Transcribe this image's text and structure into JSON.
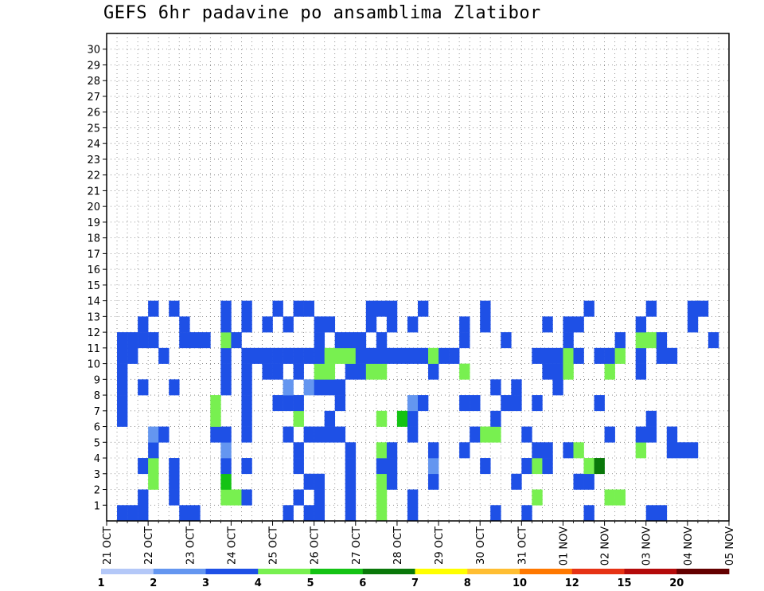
{
  "chart_data": {
    "type": "heatmap",
    "title": "GEFS 6hr padavine po ansamblima Zlatibor",
    "y_ticks": [
      "1",
      "2",
      "3",
      "4",
      "5",
      "6",
      "7",
      "8",
      "9",
      "10",
      "11",
      "12",
      "13",
      "14",
      "15",
      "16",
      "17",
      "18",
      "19",
      "20",
      "21",
      "22",
      "23",
      "24",
      "25",
      "26",
      "27",
      "28",
      "29",
      "30"
    ],
    "x_ticks": [
      "21 OCT",
      "22 OCT",
      "23 OCT",
      "24 OCT",
      "25 OCT",
      "26 OCT",
      "27 OCT",
      "28 OCT",
      "29 OCT",
      "30 OCT",
      "31 OCT",
      "01 NOV",
      "02 NOV",
      "03 NOV",
      "04 NOV",
      "05 NOV"
    ],
    "x_steps_total": 60,
    "y_members": 31,
    "legend_labels": [
      "1",
      "2",
      "3",
      "4",
      "5",
      "6",
      "7",
      "8",
      "10",
      "12",
      "15",
      "20"
    ],
    "legend_colors": [
      "#b4c8f8",
      "#6496f0",
      "#1e50e6",
      "#78f050",
      "#14c314",
      "#0a780a",
      "#ffff00",
      "#ffbe32",
      "#ff7800",
      "#e63214",
      "#b40a0a",
      "#640000"
    ],
    "cells": [
      [
        0,
        1,
        2
      ],
      [
        0,
        2,
        2
      ],
      [
        0,
        3,
        2
      ],
      [
        0,
        7,
        2
      ],
      [
        0,
        8,
        2
      ],
      [
        0,
        17,
        2
      ],
      [
        0,
        19,
        2
      ],
      [
        0,
        20,
        2
      ],
      [
        0,
        23,
        2
      ],
      [
        0,
        26,
        3
      ],
      [
        0,
        29,
        2
      ],
      [
        0,
        37,
        2
      ],
      [
        0,
        40,
        2
      ],
      [
        0,
        46,
        2
      ],
      [
        0,
        52,
        2
      ],
      [
        0,
        53,
        2
      ],
      [
        1,
        3,
        2
      ],
      [
        1,
        6,
        2
      ],
      [
        1,
        11,
        3
      ],
      [
        1,
        12,
        3
      ],
      [
        1,
        13,
        2
      ],
      [
        1,
        18,
        2
      ],
      [
        1,
        20,
        2
      ],
      [
        1,
        23,
        2
      ],
      [
        1,
        26,
        3
      ],
      [
        1,
        29,
        2
      ],
      [
        1,
        41,
        3
      ],
      [
        1,
        48,
        3
      ],
      [
        1,
        49,
        3
      ],
      [
        2,
        4,
        3
      ],
      [
        2,
        6,
        2
      ],
      [
        2,
        11,
        4
      ],
      [
        2,
        19,
        2
      ],
      [
        2,
        20,
        2
      ],
      [
        2,
        23,
        2
      ],
      [
        2,
        26,
        3
      ],
      [
        2,
        27,
        2
      ],
      [
        2,
        31,
        2
      ],
      [
        2,
        39,
        2
      ],
      [
        2,
        45,
        2
      ],
      [
        2,
        46,
        2
      ],
      [
        3,
        3,
        2
      ],
      [
        3,
        4,
        3
      ],
      [
        3,
        6,
        2
      ],
      [
        3,
        11,
        2
      ],
      [
        3,
        13,
        2
      ],
      [
        3,
        18,
        2
      ],
      [
        3,
        23,
        2
      ],
      [
        3,
        26,
        2
      ],
      [
        3,
        27,
        2
      ],
      [
        3,
        31,
        1
      ],
      [
        3,
        36,
        2
      ],
      [
        3,
        40,
        2
      ],
      [
        3,
        41,
        3
      ],
      [
        3,
        42,
        2
      ],
      [
        3,
        46,
        3
      ],
      [
        3,
        47,
        5
      ],
      [
        4,
        4,
        2
      ],
      [
        4,
        11,
        1
      ],
      [
        4,
        18,
        2
      ],
      [
        4,
        23,
        2
      ],
      [
        4,
        26,
        3
      ],
      [
        4,
        27,
        2
      ],
      [
        4,
        31,
        2
      ],
      [
        4,
        34,
        2
      ],
      [
        4,
        41,
        2
      ],
      [
        4,
        42,
        2
      ],
      [
        4,
        44,
        2
      ],
      [
        4,
        45,
        3
      ],
      [
        4,
        51,
        3
      ],
      [
        4,
        54,
        2
      ],
      [
        4,
        55,
        2
      ],
      [
        4,
        56,
        2
      ],
      [
        5,
        4,
        1
      ],
      [
        5,
        5,
        2
      ],
      [
        5,
        10,
        2
      ],
      [
        5,
        11,
        2
      ],
      [
        5,
        13,
        2
      ],
      [
        5,
        17,
        2
      ],
      [
        5,
        19,
        2
      ],
      [
        5,
        20,
        2
      ],
      [
        5,
        21,
        2
      ],
      [
        5,
        22,
        2
      ],
      [
        5,
        29,
        2
      ],
      [
        5,
        35,
        2
      ],
      [
        5,
        36,
        3
      ],
      [
        5,
        37,
        3
      ],
      [
        5,
        40,
        2
      ],
      [
        5,
        48,
        2
      ],
      [
        5,
        51,
        2
      ],
      [
        5,
        52,
        2
      ],
      [
        5,
        54,
        2
      ],
      [
        6,
        1,
        2
      ],
      [
        6,
        10,
        3
      ],
      [
        6,
        13,
        2
      ],
      [
        6,
        18,
        3
      ],
      [
        6,
        21,
        2
      ],
      [
        6,
        26,
        3
      ],
      [
        6,
        28,
        4
      ],
      [
        6,
        29,
        2
      ],
      [
        6,
        37,
        2
      ],
      [
        6,
        52,
        2
      ],
      [
        7,
        1,
        2
      ],
      [
        7,
        10,
        3
      ],
      [
        7,
        13,
        2
      ],
      [
        7,
        16,
        2
      ],
      [
        7,
        17,
        2
      ],
      [
        7,
        18,
        2
      ],
      [
        7,
        22,
        2
      ],
      [
        7,
        29,
        1
      ],
      [
        7,
        30,
        2
      ],
      [
        7,
        34,
        2
      ],
      [
        7,
        35,
        2
      ],
      [
        7,
        38,
        2
      ],
      [
        7,
        39,
        2
      ],
      [
        7,
        41,
        2
      ],
      [
        7,
        47,
        2
      ],
      [
        8,
        1,
        2
      ],
      [
        8,
        3,
        2
      ],
      [
        8,
        6,
        2
      ],
      [
        8,
        11,
        2
      ],
      [
        8,
        13,
        2
      ],
      [
        8,
        17,
        1
      ],
      [
        8,
        19,
        1
      ],
      [
        8,
        20,
        2
      ],
      [
        8,
        21,
        2
      ],
      [
        8,
        22,
        2
      ],
      [
        8,
        37,
        2
      ],
      [
        8,
        39,
        2
      ],
      [
        8,
        43,
        2
      ],
      [
        9,
        1,
        2
      ],
      [
        9,
        11,
        2
      ],
      [
        9,
        13,
        2
      ],
      [
        9,
        15,
        2
      ],
      [
        9,
        16,
        2
      ],
      [
        9,
        18,
        2
      ],
      [
        9,
        20,
        3
      ],
      [
        9,
        21,
        3
      ],
      [
        9,
        23,
        2
      ],
      [
        9,
        24,
        2
      ],
      [
        9,
        25,
        3
      ],
      [
        9,
        26,
        3
      ],
      [
        9,
        31,
        2
      ],
      [
        9,
        34,
        3
      ],
      [
        9,
        42,
        2
      ],
      [
        9,
        43,
        2
      ],
      [
        9,
        44,
        3
      ],
      [
        9,
        48,
        3
      ],
      [
        9,
        51,
        2
      ],
      [
        10,
        1,
        2
      ],
      [
        10,
        2,
        2
      ],
      [
        10,
        5,
        2
      ],
      [
        10,
        11,
        2
      ],
      [
        10,
        13,
        2
      ],
      [
        10,
        14,
        2
      ],
      [
        10,
        15,
        2
      ],
      [
        10,
        16,
        2
      ],
      [
        10,
        17,
        2
      ],
      [
        10,
        18,
        2
      ],
      [
        10,
        19,
        2
      ],
      [
        10,
        20,
        2
      ],
      [
        10,
        21,
        3
      ],
      [
        10,
        22,
        3
      ],
      [
        10,
        23,
        3
      ],
      [
        10,
        24,
        2
      ],
      [
        10,
        25,
        2
      ],
      [
        10,
        26,
        2
      ],
      [
        10,
        27,
        2
      ],
      [
        10,
        28,
        2
      ],
      [
        10,
        29,
        2
      ],
      [
        10,
        30,
        2
      ],
      [
        10,
        31,
        3
      ],
      [
        10,
        32,
        2
      ],
      [
        10,
        33,
        2
      ],
      [
        10,
        41,
        2
      ],
      [
        10,
        42,
        2
      ],
      [
        10,
        43,
        2
      ],
      [
        10,
        44,
        3
      ],
      [
        10,
        45,
        2
      ],
      [
        10,
        47,
        2
      ],
      [
        10,
        48,
        2
      ],
      [
        10,
        49,
        3
      ],
      [
        10,
        51,
        2
      ],
      [
        10,
        53,
        2
      ],
      [
        10,
        54,
        2
      ],
      [
        11,
        1,
        2
      ],
      [
        11,
        2,
        2
      ],
      [
        11,
        3,
        2
      ],
      [
        11,
        4,
        2
      ],
      [
        11,
        7,
        2
      ],
      [
        11,
        8,
        2
      ],
      [
        11,
        9,
        2
      ],
      [
        11,
        11,
        3
      ],
      [
        11,
        12,
        2
      ],
      [
        11,
        20,
        2
      ],
      [
        11,
        22,
        2
      ],
      [
        11,
        23,
        2
      ],
      [
        11,
        24,
        2
      ],
      [
        11,
        26,
        2
      ],
      [
        11,
        34,
        2
      ],
      [
        11,
        38,
        2
      ],
      [
        11,
        44,
        2
      ],
      [
        11,
        49,
        2
      ],
      [
        11,
        51,
        3
      ],
      [
        11,
        52,
        3
      ],
      [
        11,
        53,
        2
      ],
      [
        11,
        58,
        2
      ],
      [
        12,
        3,
        2
      ],
      [
        12,
        7,
        2
      ],
      [
        12,
        11,
        2
      ],
      [
        12,
        13,
        2
      ],
      [
        12,
        15,
        2
      ],
      [
        12,
        17,
        2
      ],
      [
        12,
        20,
        2
      ],
      [
        12,
        21,
        2
      ],
      [
        12,
        25,
        2
      ],
      [
        12,
        27,
        2
      ],
      [
        12,
        29,
        2
      ],
      [
        12,
        34,
        2
      ],
      [
        12,
        36,
        2
      ],
      [
        12,
        42,
        2
      ],
      [
        12,
        44,
        2
      ],
      [
        12,
        45,
        2
      ],
      [
        12,
        51,
        2
      ],
      [
        12,
        56,
        2
      ],
      [
        13,
        4,
        2
      ],
      [
        13,
        6,
        2
      ],
      [
        13,
        11,
        2
      ],
      [
        13,
        13,
        2
      ],
      [
        13,
        16,
        2
      ],
      [
        13,
        18,
        2
      ],
      [
        13,
        19,
        2
      ],
      [
        13,
        25,
        2
      ],
      [
        13,
        26,
        2
      ],
      [
        13,
        27,
        2
      ],
      [
        13,
        30,
        2
      ],
      [
        13,
        36,
        2
      ],
      [
        13,
        46,
        2
      ],
      [
        13,
        52,
        2
      ],
      [
        13,
        56,
        2
      ],
      [
        13,
        57,
        2
      ]
    ]
  }
}
